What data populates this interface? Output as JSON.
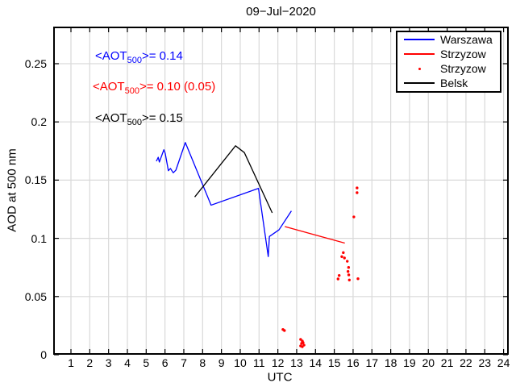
{
  "chart_data": {
    "type": "line",
    "title": "09−Jul−2020",
    "xlabel": "UTC",
    "ylabel": "AOD at 500 nm",
    "xlim": [
      0.06,
      24.28
    ],
    "ylim": [
      0,
      0.282
    ],
    "xticks": [
      1,
      2,
      3,
      4,
      5,
      6,
      7,
      8,
      9,
      10,
      11,
      12,
      13,
      14,
      15,
      16,
      17,
      18,
      19,
      20,
      21,
      22,
      23,
      24
    ],
    "yticks": [
      0,
      0.05,
      0.1,
      0.15,
      0.2,
      0.25
    ],
    "ytick_labels": [
      "0",
      "0.05",
      "0.1",
      "0.15",
      "0.2",
      "0.25"
    ],
    "grid": true,
    "grid_color": "#d9d9d9",
    "axis_color": "#000000",
    "legend_position": "top-right",
    "series": [
      {
        "name": "Warszawa",
        "type": "line",
        "color": "#0000ff",
        "points": [
          [
            5.54,
            0.1662
          ],
          [
            5.64,
            0.1696
          ],
          [
            5.7,
            0.1655
          ],
          [
            5.94,
            0.1761
          ],
          [
            6.01,
            0.1731
          ],
          [
            6.18,
            0.1581
          ],
          [
            6.29,
            0.16
          ],
          [
            6.44,
            0.1563
          ],
          [
            6.58,
            0.1586
          ],
          [
            7.08,
            0.1823
          ],
          [
            8.45,
            0.1285
          ],
          [
            10.97,
            0.1429
          ],
          [
            11.49,
            0.0843
          ],
          [
            11.55,
            0.1016
          ],
          [
            12.06,
            0.1073
          ],
          [
            12.72,
            0.1235
          ]
        ]
      },
      {
        "name": "Strzyzow",
        "type": "line",
        "color": "#ff0000",
        "points": [
          [
            12.37,
            0.1101
          ],
          [
            15.56,
            0.0959
          ]
        ]
      },
      {
        "name": "Strzyzow",
        "type": "scatter",
        "color": "#ff0000",
        "marker": ".",
        "points": [
          [
            12.27,
            0.0217
          ],
          [
            12.35,
            0.0208
          ],
          [
            13.21,
            0.0132
          ],
          [
            13.3,
            0.0118
          ],
          [
            13.26,
            0.0097
          ],
          [
            13.34,
            0.0104
          ],
          [
            13.39,
            0.0083
          ],
          [
            13.21,
            0.0076
          ],
          [
            13.3,
            0.0069
          ],
          [
            15.2,
            0.0651
          ],
          [
            15.26,
            0.0681
          ],
          [
            15.4,
            0.0843
          ],
          [
            15.48,
            0.0877
          ],
          [
            15.54,
            0.0831
          ],
          [
            15.69,
            0.0803
          ],
          [
            15.73,
            0.0715
          ],
          [
            15.76,
            0.075
          ],
          [
            15.77,
            0.0686
          ],
          [
            15.8,
            0.0642
          ],
          [
            16.04,
            0.1184
          ],
          [
            16.21,
            0.1392
          ],
          [
            16.21,
            0.1433
          ],
          [
            16.26,
            0.0653
          ]
        ]
      },
      {
        "name": "Belsk",
        "type": "line",
        "color": "#000000",
        "points": [
          [
            7.58,
            0.1355
          ],
          [
            9.75,
            0.1795
          ],
          [
            10.22,
            0.1736
          ],
          [
            11.7,
            0.1219
          ]
        ]
      }
    ],
    "annotations": [
      {
        "prefix": "<AOT",
        "sub": "500",
        "suffix": ">= 0.14",
        "color": "#0000ff"
      },
      {
        "prefix": "<AOT",
        "sub": "500",
        "suffix": ">= 0.10 (0.05)",
        "color": "#ff0000"
      },
      {
        "prefix": "<AOT",
        "sub": "500",
        "suffix": ">= 0.15",
        "color": "#000000"
      }
    ]
  }
}
